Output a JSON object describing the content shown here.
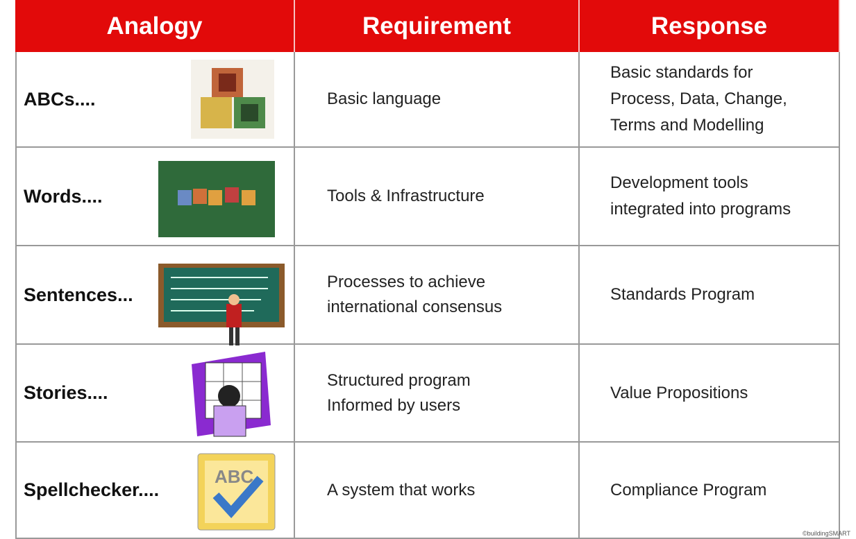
{
  "table": {
    "header": [
      "Analogy",
      "Requirement",
      "Response"
    ],
    "rows": [
      [
        [
          "ABCs...."
        ],
        [
          "Basic language"
        ],
        [
          "Basic standards for",
          "Process, Data, Change,",
          "Terms and Modelling"
        ]
      ],
      [
        [
          "Words...."
        ],
        [
          "Tools & Infrastructure"
        ],
        [
          "Development tools",
          "integrated into programs"
        ]
      ],
      [
        [
          "Sentences..."
        ],
        [
          "Processes to achieve",
          "international consensus"
        ],
        [
          "Standards Program"
        ]
      ],
      [
        [
          "Stories...."
        ],
        [
          "Structured program",
          "Informed by users"
        ],
        [
          "Value Propositions"
        ]
      ],
      [
        [
          "Spellchecker...."
        ],
        [
          "A system that works"
        ],
        [
          "Compliance Program"
        ]
      ]
    ]
  },
  "footer": {
    "credit": "©buildingSMART"
  }
}
